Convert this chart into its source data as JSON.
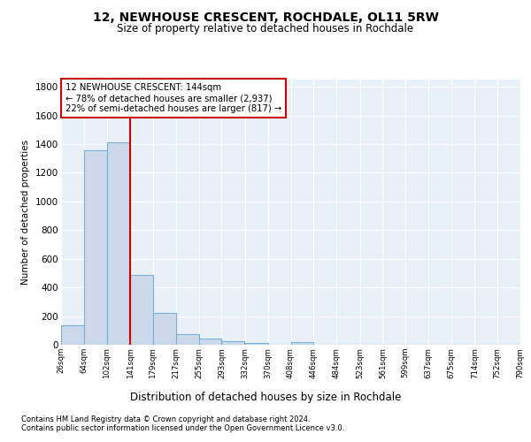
{
  "title": "12, NEWHOUSE CRESCENT, ROCHDALE, OL11 5RW",
  "subtitle": "Size of property relative to detached houses in Rochdale",
  "xlabel": "Distribution of detached houses by size in Rochdale",
  "ylabel": "Number of detached properties",
  "bar_color": "#ccd9ea",
  "bar_edge_color": "#7bafd4",
  "plot_bg_color": "#e8f0f8",
  "fig_bg_color": "#ffffff",
  "grid_color": "#ffffff",
  "vline_color": "#cc0000",
  "vline_x": 141,
  "annotation_lines": [
    "12 NEWHOUSE CRESCENT: 144sqm",
    "← 78% of detached houses are smaller (2,937)",
    "22% of semi-detached houses are larger (817) →"
  ],
  "bin_edges": [
    26,
    64,
    102,
    141,
    179,
    217,
    255,
    293,
    332,
    370,
    408,
    446,
    484,
    523,
    561,
    599,
    637,
    675,
    714,
    752,
    790
  ],
  "bin_heights": [
    135,
    1355,
    1410,
    490,
    225,
    75,
    45,
    25,
    15,
    0,
    20,
    0,
    0,
    0,
    0,
    0,
    0,
    0,
    0,
    0
  ],
  "tick_labels": [
    "26sqm",
    "64sqm",
    "102sqm",
    "141sqm",
    "179sqm",
    "217sqm",
    "255sqm",
    "293sqm",
    "332sqm",
    "370sqm",
    "408sqm",
    "446sqm",
    "484sqm",
    "523sqm",
    "561sqm",
    "599sqm",
    "637sqm",
    "675sqm",
    "714sqm",
    "752sqm",
    "790sqm"
  ],
  "ylim": [
    0,
    1850
  ],
  "yticks": [
    0,
    200,
    400,
    600,
    800,
    1000,
    1200,
    1400,
    1600,
    1800
  ],
  "footnote1": "Contains HM Land Registry data © Crown copyright and database right 2024.",
  "footnote2": "Contains public sector information licensed under the Open Government Licence v3.0."
}
